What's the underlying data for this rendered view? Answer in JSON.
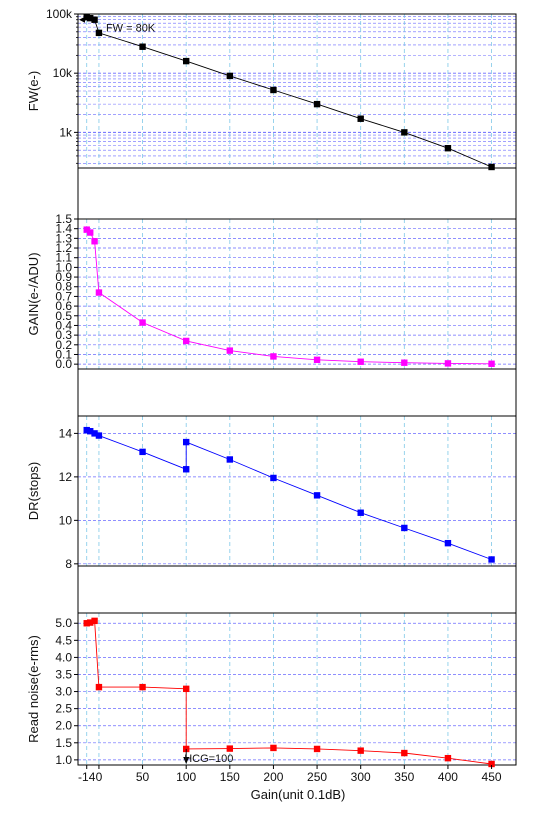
{
  "chart_data": {
    "type": "line",
    "xlabel": "Gain(unit 0.1dB)",
    "x_ticks": [
      -14,
      0,
      50,
      100,
      150,
      200,
      250,
      300,
      350,
      400,
      450
    ],
    "x_tick_labels": [
      "-14",
      "0",
      "50",
      "100",
      "150",
      "200",
      "250",
      "300",
      "350",
      "400",
      "450"
    ],
    "xlim": [
      -24,
      478
    ],
    "grid": true,
    "panels": [
      {
        "id": "fw",
        "type": "line",
        "ylabel": "FW(e-)",
        "scale": "log",
        "ylim": [
          250,
          100000
        ],
        "y_ticks": [
          1000,
          10000,
          100000
        ],
        "y_tick_labels": [
          "1k",
          "10k",
          "100k"
        ],
        "color": "#000000",
        "series": [
          {
            "x": [
              -14,
              -10,
              -5,
              0,
              50,
              100,
              150,
              200,
              250,
              300,
              350,
              400,
              450
            ],
            "y": [
              88000,
              85000,
              80000,
              48000,
              28000,
              16000,
              9000,
              5200,
              3000,
              1700,
              1000,
              540,
              260
            ]
          }
        ],
        "annotations": [
          {
            "text": "FW = 80K"
          }
        ]
      },
      {
        "id": "gain",
        "type": "line",
        "ylabel": "GAIN(e-/ADU)",
        "scale": "linear",
        "ylim": [
          -0.05,
          1.5
        ],
        "y_ticks": [
          0.0,
          0.1,
          0.2,
          0.3,
          0.4,
          0.5,
          0.6,
          0.7,
          0.8,
          0.9,
          1.0,
          1.1,
          1.2,
          1.3,
          1.4,
          1.5
        ],
        "y_tick_labels": [
          "0.0",
          "0.1",
          "0.2",
          "0.3",
          "0.4",
          "0.5",
          "0.6",
          "0.7",
          "0.8",
          "0.9",
          "1.0",
          "1.1",
          "1.2",
          "1.3",
          "1.4",
          "1.5"
        ],
        "color": "#ff00ff",
        "series": [
          {
            "x": [
              -14,
              -10,
              -5,
              0,
              50,
              100,
              150,
              200,
              250,
              300,
              350,
              400,
              450
            ],
            "y": [
              1.39,
              1.36,
              1.27,
              0.74,
              0.43,
              0.24,
              0.14,
              0.08,
              0.045,
              0.025,
              0.015,
              0.008,
              0.004
            ]
          }
        ]
      },
      {
        "id": "dr",
        "type": "line",
        "ylabel": "DR(stops)",
        "scale": "linear",
        "ylim": [
          7.9,
          14.8
        ],
        "y_ticks": [
          8,
          10,
          12,
          14
        ],
        "y_tick_labels": [
          "8",
          "10",
          "12",
          "14"
        ],
        "color": "#0000ff",
        "series": [
          {
            "x": [
              -14,
              -10,
              -5,
              0,
              50,
              100,
              100,
              150,
              200,
              250,
              300,
              350,
              400,
              450
            ],
            "y": [
              14.15,
              14.1,
              14.0,
              13.9,
              13.15,
              12.35,
              13.6,
              12.8,
              11.95,
              11.15,
              10.35,
              9.65,
              8.95,
              8.2
            ]
          }
        ]
      },
      {
        "id": "noise",
        "type": "line",
        "ylabel": "Read noise(e-rms)",
        "scale": "linear",
        "ylim": [
          0.85,
          5.3
        ],
        "y_ticks": [
          1.0,
          1.5,
          2.0,
          2.5,
          3.0,
          3.5,
          4.0,
          4.5,
          5.0
        ],
        "y_tick_labels": [
          "1.0",
          "1.5",
          "2.0",
          "2.5",
          "3.0",
          "3.5",
          "4.0",
          "4.5",
          "5.0"
        ],
        "color": "#ff0000",
        "series": [
          {
            "x": [
              -14,
              -10,
              -5,
              0,
              50,
              100,
              100,
              150,
              200,
              250,
              300,
              350,
              400,
              450
            ],
            "y": [
              5.0,
              5.02,
              5.07,
              3.13,
              3.13,
              3.08,
              1.32,
              1.33,
              1.35,
              1.32,
              1.27,
              1.2,
              1.05,
              0.88
            ]
          }
        ],
        "annotations": [
          {
            "text": "HCG=100"
          }
        ]
      }
    ]
  }
}
